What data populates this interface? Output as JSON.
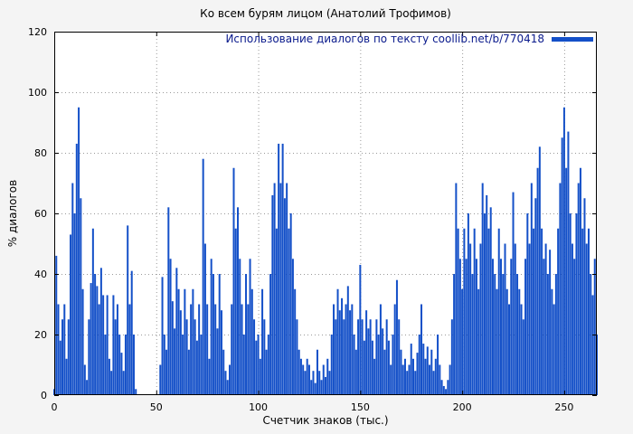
{
  "figure": {
    "background": "#f4f4f4"
  },
  "chart_data": {
    "type": "bar",
    "title": "Ко всем бурям лицом (Анатолий Трофимов)",
    "legend": "Использование диалогов по тексту coollib.net/b/770418",
    "legend_position": "top-right",
    "xlabel": "Счетчик знаков (тыс.)",
    "ylabel": "% диалогов",
    "xlim": [
      0,
      266
    ],
    "ylim": [
      0,
      120
    ],
    "xticks": [
      0,
      50,
      100,
      150,
      200,
      250
    ],
    "yticks": [
      0,
      20,
      40,
      60,
      80,
      100,
      120
    ],
    "grid": "dotted",
    "colors": {
      "bar": "#1450c8",
      "grid": "#9a9a9a",
      "plot_bg": "#ffffff",
      "axis": "#000000",
      "legend_text": "#0a1a8c"
    },
    "x_start": 0,
    "x_step": 1,
    "values": [
      2,
      46,
      30,
      18,
      25,
      30,
      12,
      25,
      53,
      70,
      60,
      83,
      95,
      65,
      35,
      10,
      5,
      25,
      37,
      55,
      40,
      36,
      30,
      42,
      33,
      20,
      33,
      12,
      8,
      33,
      25,
      30,
      20,
      14,
      8,
      20,
      56,
      30,
      41,
      20,
      2,
      0,
      0,
      0,
      0,
      0,
      0,
      0,
      0,
      0,
      0,
      0,
      10,
      39,
      20,
      15,
      62,
      45,
      31,
      22,
      42,
      35,
      28,
      20,
      35,
      25,
      15,
      30,
      35,
      25,
      18,
      30,
      20,
      78,
      50,
      30,
      12,
      45,
      40,
      30,
      22,
      40,
      28,
      15,
      8,
      5,
      10,
      30,
      75,
      55,
      62,
      45,
      30,
      20,
      40,
      30,
      45,
      35,
      25,
      18,
      20,
      12,
      35,
      25,
      15,
      20,
      40,
      66,
      70,
      55,
      83,
      70,
      83,
      65,
      70,
      55,
      60,
      45,
      35,
      25,
      15,
      12,
      10,
      8,
      12,
      10,
      5,
      8,
      4,
      15,
      8,
      5,
      10,
      6,
      12,
      8,
      20,
      30,
      25,
      35,
      28,
      32,
      25,
      30,
      36,
      28,
      30,
      20,
      15,
      25,
      43,
      25,
      18,
      28,
      22,
      25,
      18,
      12,
      25,
      20,
      30,
      22,
      15,
      25,
      18,
      10,
      20,
      30,
      38,
      25,
      15,
      10,
      12,
      8,
      10,
      17,
      12,
      8,
      14,
      20,
      30,
      17,
      12,
      16,
      10,
      15,
      8,
      12,
      20,
      10,
      5,
      3,
      2,
      5,
      10,
      25,
      40,
      70,
      55,
      45,
      35,
      55,
      45,
      60,
      50,
      40,
      55,
      45,
      35,
      50,
      70,
      60,
      66,
      55,
      62,
      45,
      40,
      35,
      55,
      45,
      40,
      50,
      35,
      30,
      45,
      67,
      50,
      40,
      35,
      30,
      25,
      45,
      60,
      50,
      70,
      55,
      65,
      75,
      82,
      55,
      45,
      50,
      40,
      48,
      35,
      30,
      40,
      55,
      70,
      85,
      95,
      75,
      87,
      60,
      50,
      45,
      60,
      70,
      75,
      55,
      65,
      50,
      55,
      40,
      33,
      45,
      20
    ]
  }
}
